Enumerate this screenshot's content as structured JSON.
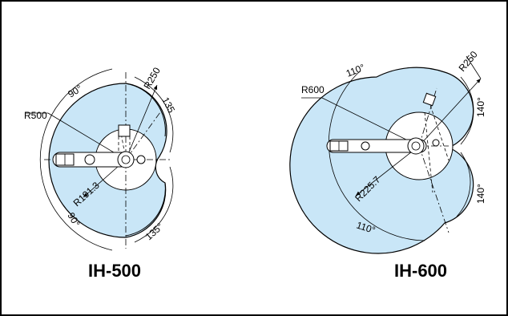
{
  "models": [
    {
      "title": "IH-500",
      "labels": {
        "radius_outer": "R500",
        "radius_arm": "R250",
        "radius_inner": "R191.3",
        "angle_top": "90°",
        "angle_bottom": "90°",
        "angle_top_right": "135",
        "angle_bottom_right": "135°"
      }
    },
    {
      "title": "IH-600",
      "labels": {
        "radius_outer": "R600",
        "radius_arm": "R250",
        "radius_inner": "R225.7",
        "angle_top": "110°",
        "angle_bottom": "110°",
        "angle_top_right": "140°",
        "angle_bottom_right": "140°"
      }
    }
  ]
}
